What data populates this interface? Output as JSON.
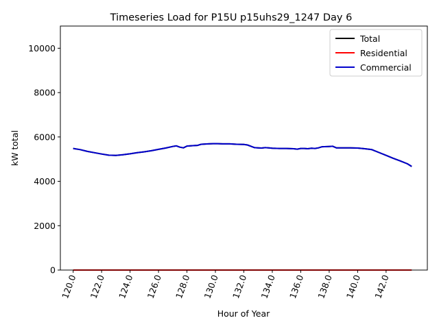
{
  "chart_data": {
    "type": "line",
    "title": "Timeseries Load for P15U p15uhs29_1247  Day 6",
    "xlabel": "Hour of Year",
    "ylabel": "kW total",
    "xlim": [
      119.1,
      144.9
    ],
    "ylim": [
      0,
      11000
    ],
    "xticks": [
      120,
      122,
      124,
      126,
      128,
      130,
      132,
      134,
      136,
      138,
      140,
      142
    ],
    "xtick_labels": [
      "120.0",
      "122.0",
      "124.0",
      "126.0",
      "128.0",
      "130.0",
      "132.0",
      "134.0",
      "136.0",
      "138.0",
      "140.0",
      "142.0"
    ],
    "yticks": [
      0,
      2000,
      4000,
      6000,
      8000,
      10000
    ],
    "ytick_labels": [
      "0",
      "2000",
      "4000",
      "6000",
      "8000",
      "10000"
    ],
    "grid": false,
    "legend_position": "top-right",
    "x": [
      120.0,
      120.5,
      121.0,
      121.5,
      122.0,
      122.5,
      123.0,
      123.5,
      124.0,
      124.5,
      125.0,
      125.5,
      126.0,
      126.5,
      127.0,
      127.25,
      127.5,
      127.75,
      128.0,
      128.5,
      128.75,
      129.0,
      129.5,
      130.0,
      130.5,
      131.0,
      131.5,
      132.0,
      132.25,
      132.5,
      132.75,
      133.0,
      133.25,
      133.5,
      133.75,
      134.0,
      134.5,
      135.0,
      135.5,
      135.75,
      136.0,
      136.25,
      136.5,
      136.75,
      137.0,
      137.25,
      137.5,
      138.0,
      138.25,
      138.5,
      139.0,
      139.5,
      140.0,
      140.5,
      141.0,
      141.5,
      142.0,
      142.5,
      143.0,
      143.5,
      143.8
    ],
    "series": [
      {
        "name": "Total",
        "color": "#000000",
        "values": [
          5480,
          5430,
          5350,
          5290,
          5230,
          5180,
          5170,
          5200,
          5240,
          5290,
          5330,
          5380,
          5440,
          5500,
          5570,
          5600,
          5540,
          5510,
          5590,
          5610,
          5620,
          5670,
          5690,
          5700,
          5690,
          5690,
          5670,
          5660,
          5640,
          5580,
          5520,
          5510,
          5500,
          5520,
          5510,
          5490,
          5480,
          5480,
          5470,
          5450,
          5480,
          5480,
          5470,
          5490,
          5480,
          5510,
          5560,
          5570,
          5580,
          5510,
          5510,
          5505,
          5500,
          5470,
          5430,
          5300,
          5170,
          5040,
          4920,
          4790,
          4670
        ]
      },
      {
        "name": "Residential",
        "color": "#ff0000",
        "values": [
          0,
          0,
          0,
          0,
          0,
          0,
          0,
          0,
          0,
          0,
          0,
          0,
          0,
          0,
          0,
          0,
          0,
          0,
          0,
          0,
          0,
          0,
          0,
          0,
          0,
          0,
          0,
          0,
          0,
          0,
          0,
          0,
          0,
          0,
          0,
          0,
          0,
          0,
          0,
          0,
          0,
          0,
          0,
          0,
          0,
          0,
          0,
          0,
          0,
          0,
          0,
          0,
          0,
          0,
          0,
          0,
          0,
          0,
          0,
          0,
          0
        ]
      },
      {
        "name": "Commercial",
        "color": "#0000cc",
        "values": [
          5480,
          5430,
          5350,
          5290,
          5230,
          5180,
          5170,
          5200,
          5240,
          5290,
          5330,
          5380,
          5440,
          5500,
          5570,
          5600,
          5540,
          5510,
          5590,
          5610,
          5620,
          5670,
          5690,
          5700,
          5690,
          5690,
          5670,
          5660,
          5640,
          5580,
          5520,
          5510,
          5500,
          5520,
          5510,
          5490,
          5480,
          5480,
          5470,
          5450,
          5480,
          5480,
          5470,
          5490,
          5480,
          5510,
          5560,
          5570,
          5580,
          5510,
          5510,
          5505,
          5500,
          5470,
          5430,
          5300,
          5170,
          5040,
          4920,
          4790,
          4670
        ]
      }
    ]
  }
}
